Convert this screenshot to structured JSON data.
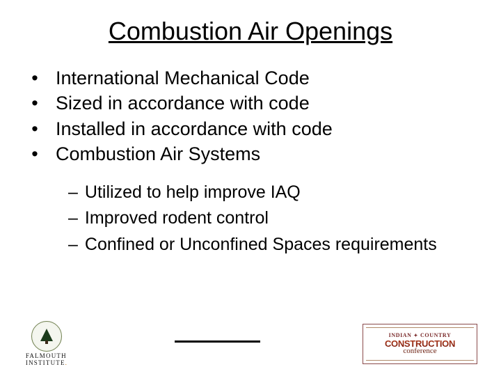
{
  "title": "Combustion Air Openings",
  "bullets": [
    "International Mechanical Code",
    "Sized in accordance with code",
    "Installed in accordance with code",
    "Combustion Air Systems"
  ],
  "subbullets": [
    "Utilized to help improve IAQ",
    "Improved rodent control",
    "Confined or Unconfined Spaces requirements"
  ],
  "logo_left": {
    "line1": "FALMOUTH",
    "line2": "INSTITUTE"
  },
  "logo_right": {
    "top_left": "INDIAN",
    "top_right": "COUNTRY",
    "main": "CONSTRUCTION",
    "sub": "conference"
  },
  "colors": {
    "text": "#000000",
    "background": "#ffffff",
    "construction_red": "#8a2310",
    "seal_green": "#1b3b1b"
  }
}
